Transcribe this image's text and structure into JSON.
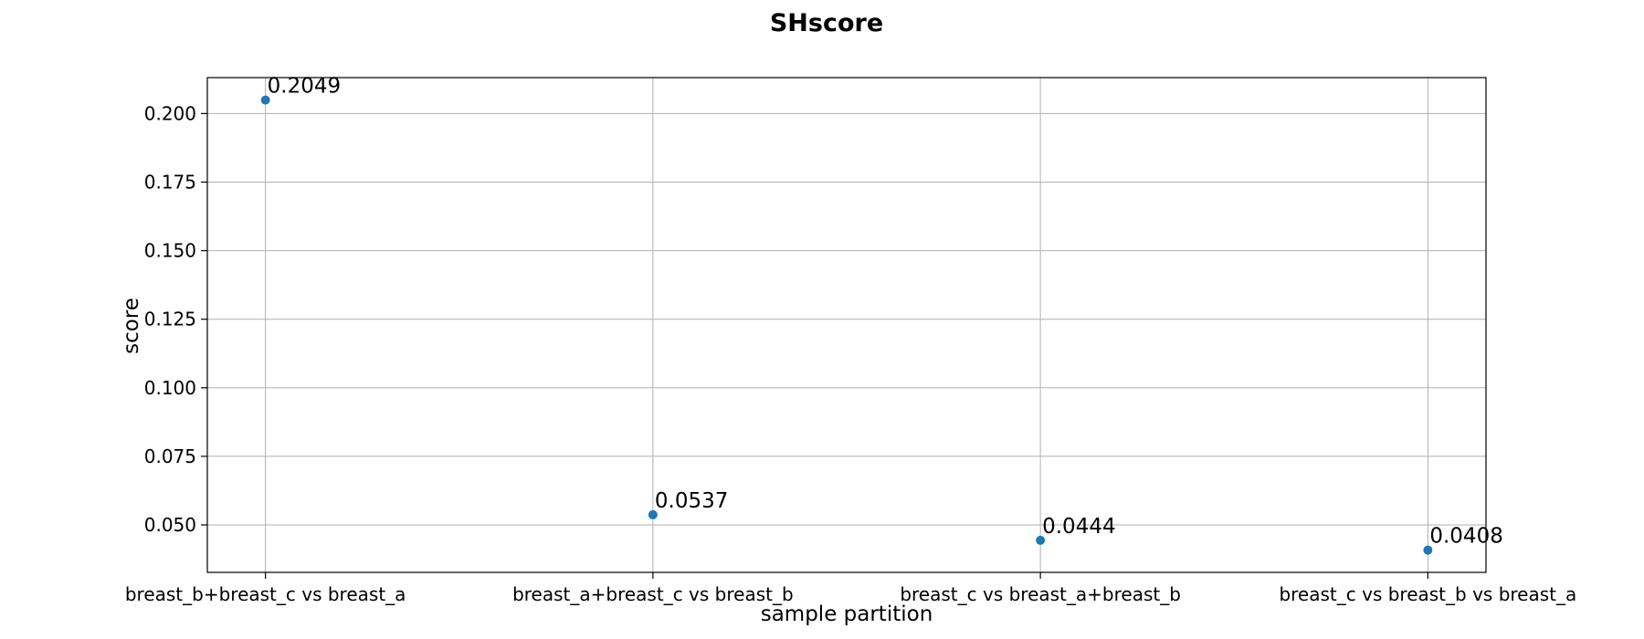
{
  "chart_data": {
    "type": "scatter",
    "title": "SHscore",
    "xlabel": "sample partition",
    "ylabel": "score",
    "categories": [
      "breast_b+breast_c vs breast_a",
      "breast_a+breast_c vs breast_b",
      "breast_c vs breast_a+breast_b",
      "breast_c vs breast_b vs breast_a"
    ],
    "values": [
      0.2049,
      0.0537,
      0.0444,
      0.0408
    ],
    "data_labels": [
      "0.2049",
      "0.0537",
      "0.0444",
      "0.0408"
    ],
    "y_ticks": [
      0.05,
      0.075,
      0.1,
      0.125,
      0.15,
      0.175,
      0.2
    ],
    "y_tick_labels": [
      "0.050",
      "0.075",
      "0.100",
      "0.125",
      "0.150",
      "0.175",
      "0.200"
    ],
    "ylim": [
      0.0327,
      0.2131
    ],
    "grid": true,
    "marker_color": "#1f77b4",
    "grid_color": "#b0b0b0"
  }
}
